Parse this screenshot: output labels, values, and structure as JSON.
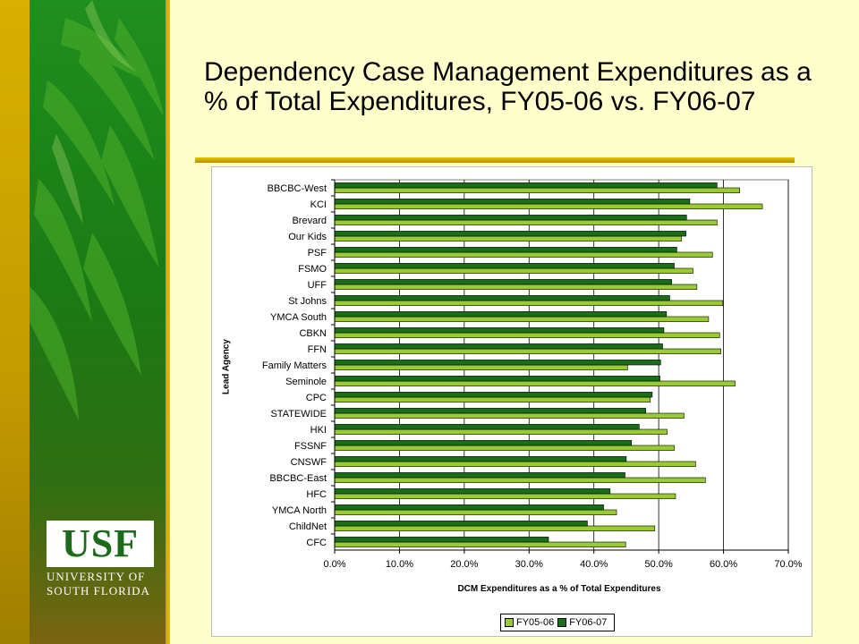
{
  "title": "Dependency Case Management Expenditures as a % of Total Expenditures, FY05-06 vs. FY06-07",
  "logo": {
    "word": "USF",
    "line1": "UNIVERSITY OF",
    "line2": "SOUTH FLORIDA"
  },
  "colors": {
    "fy0506": "#99cc33",
    "fy0607": "#1a6e1a",
    "background": "#ffffcc",
    "sidebar_green": "#1a7a14",
    "sidebar_gold": "#d9b000"
  },
  "chart_data": {
    "type": "bar",
    "orientation": "horizontal",
    "xlabel": "DCM Expenditures as a % of Total Expenditures",
    "ylabel": "Lead Agency",
    "xlim": [
      0,
      70
    ],
    "xticks": [
      0,
      10,
      20,
      30,
      40,
      50,
      60,
      70
    ],
    "xtick_labels": [
      "0.0%",
      "10.0%",
      "20.0%",
      "30.0%",
      "40.0%",
      "50.0%",
      "60.0%",
      "70.0%"
    ],
    "grid": "vertical",
    "legend_position": "bottom",
    "categories": [
      "BBCBC-West",
      "KCI",
      "Brevard",
      "Our Kids",
      "PSF",
      "FSMO",
      "UFF",
      "St Johns",
      "YMCA South",
      "CBKN",
      "FFN",
      "Family Matters",
      "Seminole",
      "CPC",
      "STATEWIDE",
      "HKI",
      "FSSNF",
      "CNSWF",
      "BBCBC-East",
      "HFC",
      "YMCA North",
      "ChildNet",
      "CFC"
    ],
    "series": [
      {
        "name": "FY05-06",
        "values": [
          62.5,
          66.0,
          59.0,
          53.5,
          58.3,
          55.3,
          55.9,
          59.9,
          57.7,
          59.4,
          59.6,
          45.2,
          61.8,
          48.7,
          53.9,
          51.3,
          52.4,
          55.7,
          57.2,
          52.6,
          43.5,
          49.4,
          44.9
        ]
      },
      {
        "name": "FY06-07",
        "values": [
          59.0,
          54.8,
          54.3,
          54.2,
          52.8,
          52.4,
          52.0,
          51.7,
          51.2,
          50.8,
          50.6,
          50.3,
          50.2,
          49.0,
          48.0,
          47.0,
          45.8,
          45.0,
          44.8,
          42.5,
          41.5,
          39.0,
          33.0
        ]
      }
    ]
  }
}
